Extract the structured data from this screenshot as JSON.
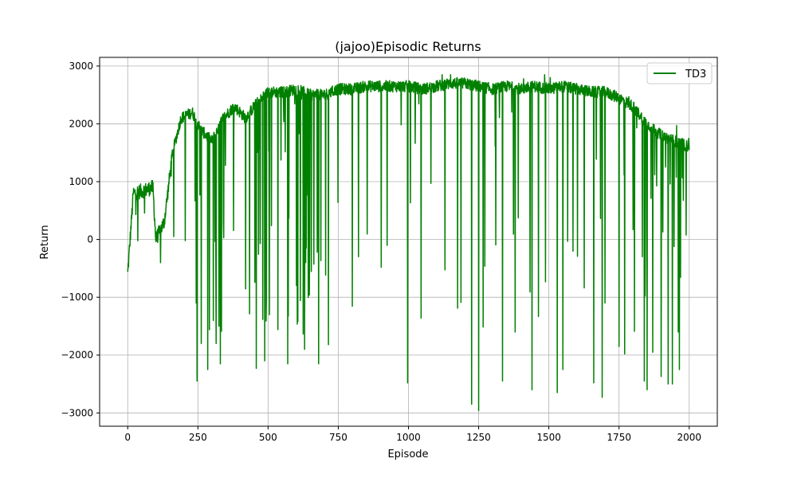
{
  "chart_data": {
    "type": "line",
    "title": "(jajoo)Episodic Returns",
    "xlabel": "Episode",
    "ylabel": "Return",
    "xlim": [
      -100,
      2100
    ],
    "ylim": [
      -3230,
      3150
    ],
    "x_ticks": [
      0,
      250,
      500,
      750,
      1000,
      1250,
      1500,
      1750,
      2000
    ],
    "y_ticks": [
      -3000,
      -2000,
      -1000,
      0,
      1000,
      2000,
      3000
    ],
    "x_tick_labels": [
      "0",
      "250",
      "500",
      "750",
      "1000",
      "1250",
      "1500",
      "1750",
      "2000"
    ],
    "y_tick_labels": [
      "−3000",
      "−2000",
      "−1000",
      "0",
      "1000",
      "2000",
      "3000"
    ],
    "grid": true,
    "legend_position": "top-right",
    "series": [
      {
        "name": "TD3",
        "color": "#008000",
        "baseline_trend": {
          "x": [
            0,
            10,
            20,
            60,
            90,
            100,
            130,
            160,
            190,
            230,
            260,
            300,
            340,
            380,
            420,
            450,
            470,
            500,
            560,
            600,
            650,
            700,
            750,
            800,
            850,
            900,
            1000,
            1050,
            1100,
            1150,
            1200,
            1250,
            1300,
            1350,
            1400,
            1450,
            1500,
            1550,
            1600,
            1650,
            1700,
            1750,
            1800,
            1850,
            1900,
            1950,
            2000
          ],
          "y": [
            -600,
            100,
            800,
            850,
            900,
            0,
            300,
            1500,
            2100,
            2200,
            1900,
            1700,
            2100,
            2300,
            2100,
            2300,
            2400,
            2550,
            2550,
            2600,
            2500,
            2500,
            2600,
            2600,
            2650,
            2650,
            2650,
            2600,
            2650,
            2700,
            2700,
            2650,
            2600,
            2650,
            2600,
            2650,
            2600,
            2650,
            2600,
            2550,
            2550,
            2450,
            2300,
            2000,
            1800,
            1700,
            1600
          ]
        },
        "dips": [
          {
            "x": 247,
            "y": -2450
          },
          {
            "x": 262,
            "y": -1800
          },
          {
            "x": 285,
            "y": -2250
          },
          {
            "x": 305,
            "y": -1400
          },
          {
            "x": 315,
            "y": -1800
          },
          {
            "x": 325,
            "y": -1500
          },
          {
            "x": 330,
            "y": -2150
          },
          {
            "x": 458,
            "y": -2230
          },
          {
            "x": 488,
            "y": -2100
          },
          {
            "x": 505,
            "y": -1300
          },
          {
            "x": 535,
            "y": -1560
          },
          {
            "x": 570,
            "y": -2150
          },
          {
            "x": 630,
            "y": -1900
          },
          {
            "x": 680,
            "y": -2150
          },
          {
            "x": 715,
            "y": -1820
          },
          {
            "x": 997,
            "y": -2480
          },
          {
            "x": 1045,
            "y": -1360
          },
          {
            "x": 1150,
            "y": -2430
          },
          {
            "x": 1225,
            "y": -2850
          },
          {
            "x": 1250,
            "y": -2960
          },
          {
            "x": 1335,
            "y": -2450
          },
          {
            "x": 1380,
            "y": -1600
          },
          {
            "x": 1440,
            "y": -2600
          },
          {
            "x": 1530,
            "y": -2650
          },
          {
            "x": 1550,
            "y": -2250
          },
          {
            "x": 1660,
            "y": -2480
          },
          {
            "x": 1690,
            "y": -2730
          },
          {
            "x": 1700,
            "y": -1100
          },
          {
            "x": 1750,
            "y": -1850
          },
          {
            "x": 1770,
            "y": -1980
          },
          {
            "x": 1840,
            "y": -2450
          },
          {
            "x": 1850,
            "y": -2600
          },
          {
            "x": 1870,
            "y": -1950
          },
          {
            "x": 1900,
            "y": -2370
          },
          {
            "x": 1925,
            "y": -2500
          },
          {
            "x": 1940,
            "y": -2500
          },
          {
            "x": 1955,
            "y": -2250
          },
          {
            "x": 1965,
            "y": -2250
          }
        ],
        "peaks": [
          {
            "x": 1120,
            "y": 2850
          },
          {
            "x": 1150,
            "y": 2850
          },
          {
            "x": 1410,
            "y": 2780
          },
          {
            "x": 1485,
            "y": 2850
          },
          {
            "x": 1505,
            "y": 2800
          },
          {
            "x": 1785,
            "y": 2470
          },
          {
            "x": 1955,
            "y": 1970
          },
          {
            "x": 1998,
            "y": 1750
          }
        ]
      }
    ]
  }
}
